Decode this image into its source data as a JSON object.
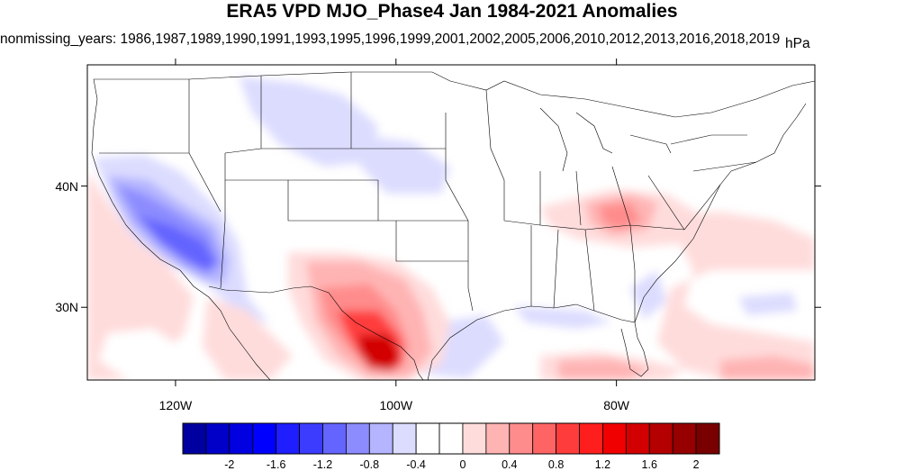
{
  "title": "ERA5 VPD MJO_Phase4 Jan 1984-2021 Anomalies",
  "subtitle": "nonmissing_years: 1986,1987,1989,1990,1991,1993,1995,1996,1999,2001,2002,2005,2006,2010,2012,2013,2016,2018,2019",
  "units": "hPa",
  "map": {
    "lon_range": [
      -128,
      -62
    ],
    "lat_range": [
      24,
      50
    ],
    "lat_ticks": [
      {
        "value": 40,
        "label": "40N"
      },
      {
        "value": 30,
        "label": "30N"
      }
    ],
    "lon_ticks": [
      {
        "value": -120,
        "label": "120W"
      },
      {
        "value": -100,
        "label": "100W"
      },
      {
        "value": -80,
        "label": "80W"
      }
    ]
  },
  "colorbar": {
    "colors": [
      "#0000a0",
      "#0000c8",
      "#0000e0",
      "#0000ff",
      "#1e1eff",
      "#3c3cff",
      "#6464ff",
      "#8c8cff",
      "#b4b4ff",
      "#dcdcff",
      "#ffffff",
      "#ffffff",
      "#ffdcdc",
      "#ffb4b4",
      "#ff8c8c",
      "#ff6464",
      "#ff3c3c",
      "#ff1e1e",
      "#f00000",
      "#d20000",
      "#b40000",
      "#960000",
      "#780000"
    ],
    "labels": [
      "-2",
      "-1.6",
      "-1.2",
      "-0.8",
      "-0.4",
      "0",
      "0.4",
      "0.8",
      "1.2",
      "1.6",
      "2"
    ]
  }
}
